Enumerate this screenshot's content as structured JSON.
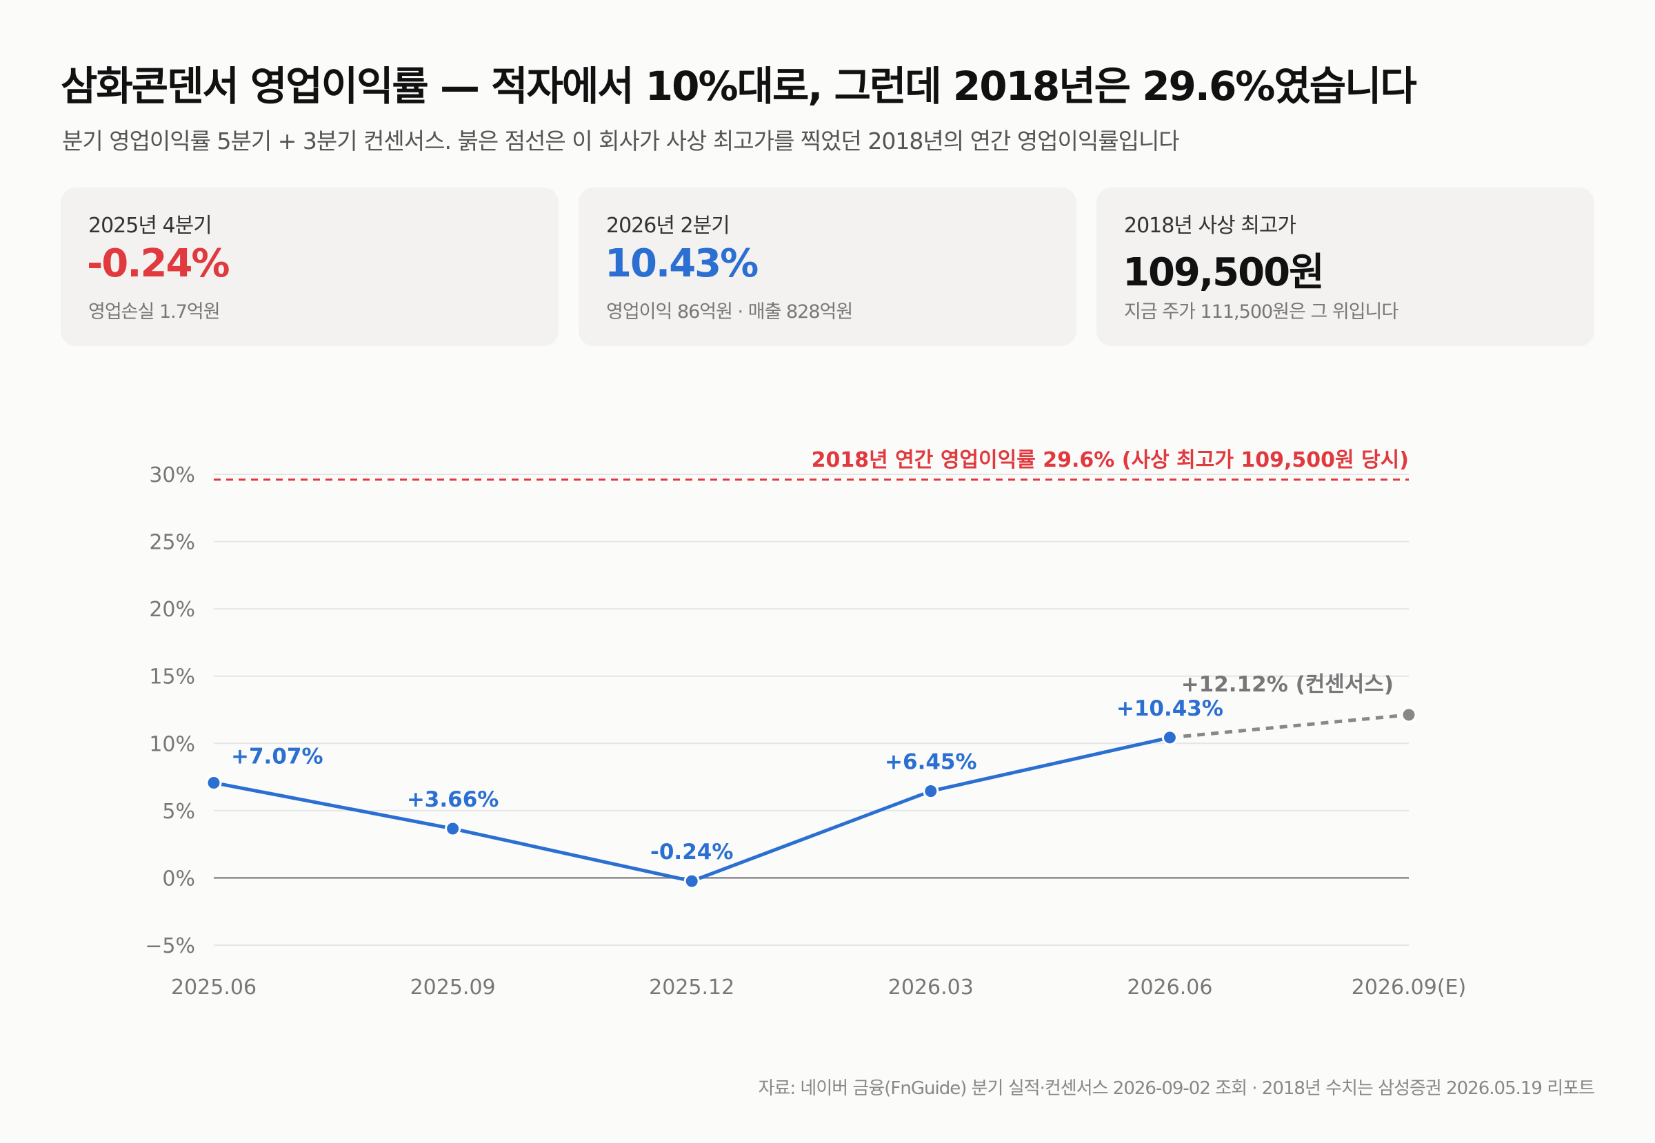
{
  "header": {
    "title": "삼화콘덴서 영업이익률 — 적자에서 10%대로, 그런데 2018년은 29.6%였습니다",
    "subtitle": "분기 영업이익률 5분기 + 3분기 컨센서스. 붉은 점선은 이 회사가 사상 최고가를 찍었던 2018년의 연간 영업이익률입니다"
  },
  "cards": [
    {
      "label": "2025년 4분기",
      "value": "-0.24%",
      "note": "영업손실 1.7억원",
      "color": "#e0393e"
    },
    {
      "label": "2026년 2분기",
      "value": "10.43%",
      "note": "영업이익 86억원 · 매출 828억원",
      "color": "#2a6fd1"
    },
    {
      "label": "2018년 사상 최고가",
      "value": "109,500원",
      "note": "지금 주가 111,500원은 그 위입니다",
      "color": "#111111"
    }
  ],
  "chart_data": {
    "type": "line",
    "categories": [
      "2025.06",
      "2025.09",
      "2025.12",
      "2026.03",
      "2026.06",
      "2026.09(E)"
    ],
    "series": [
      {
        "values": [
          7.07,
          3.66,
          -0.24,
          6.45,
          10.43,
          null
        ],
        "labels": [
          "+7.07%",
          "+3.66%",
          "-0.24%",
          "+6.45%",
          "+10.43%",
          null
        ],
        "color": "#2a6fd1"
      },
      {
        "values": [
          null,
          null,
          null,
          null,
          10.43,
          12.12
        ],
        "labels": [
          null,
          null,
          null,
          null,
          null,
          "+12.12% (컨센서스)"
        ],
        "color": "#888888",
        "dashed": true
      }
    ],
    "reference_line": {
      "value": 29.6,
      "label": "2018년 연간 영업이익률 29.6% (사상 최고가 109,500원 당시)",
      "color": "#e0393e"
    },
    "yticks": [
      "30%",
      "25%",
      "20%",
      "15%",
      "10%",
      "5%",
      "0%",
      "−5%"
    ],
    "ytick_values": [
      30,
      25,
      20,
      15,
      10,
      5,
      0,
      -5
    ],
    "ylim": [
      -5,
      30
    ],
    "grid": true
  },
  "source": "자료: 네이버 금융(FnGuide) 분기 실적·컨센서스 2026-09-02 조회 · 2018년 수치는 삼성증권 2026.05.19 리포트"
}
